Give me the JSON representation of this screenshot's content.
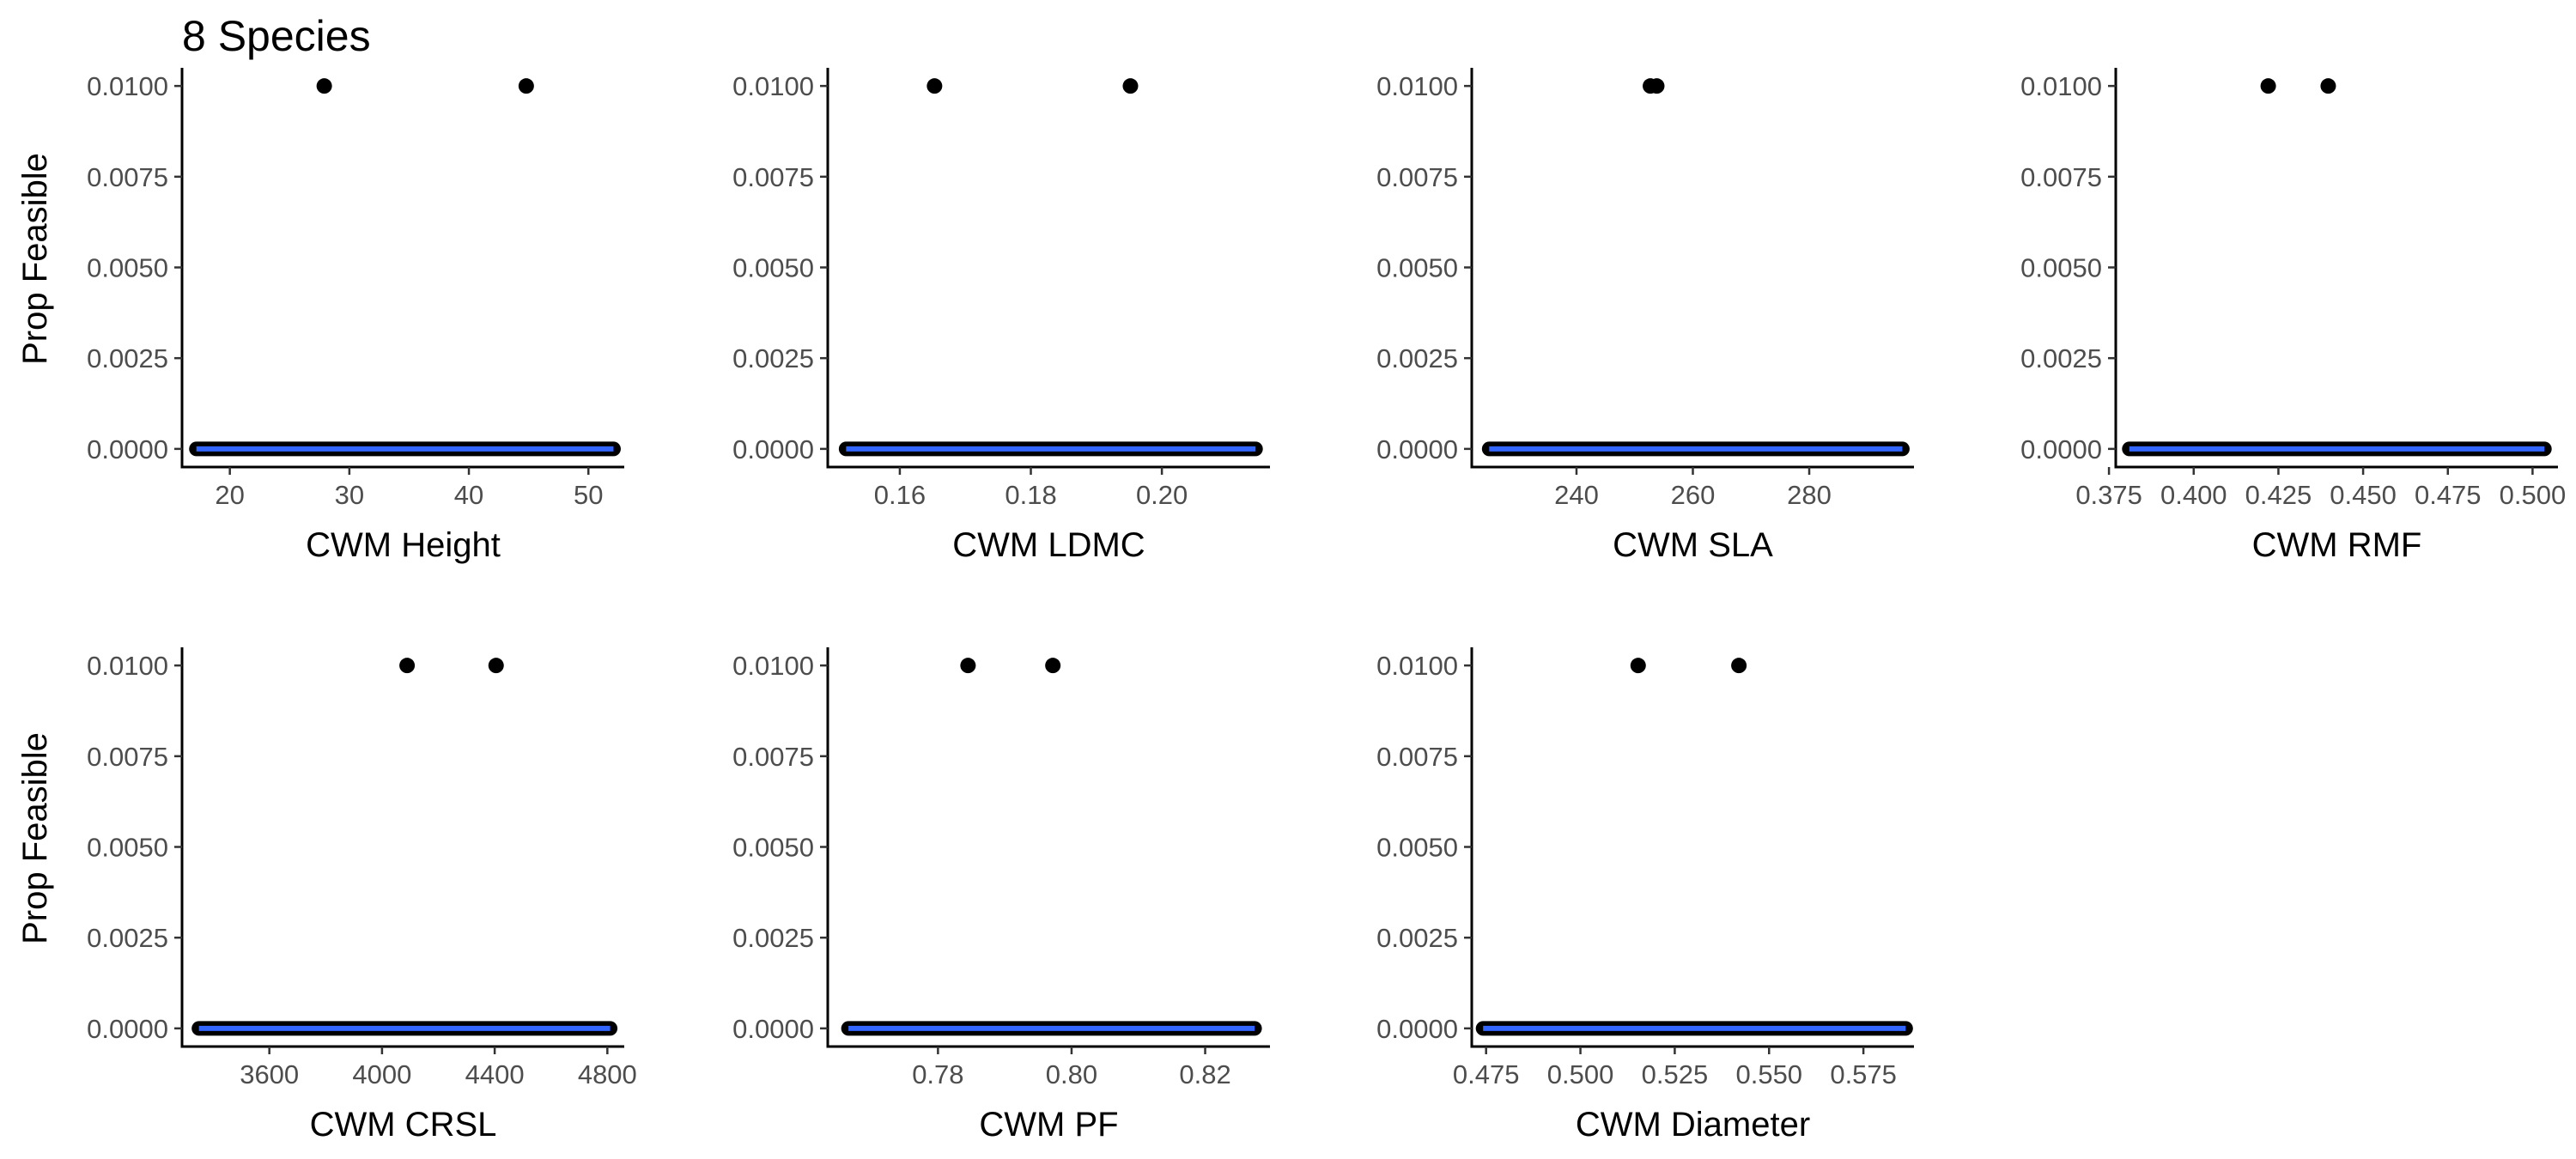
{
  "figure": {
    "title": "8 Species"
  },
  "chart_data": [
    {
      "type": "scatter",
      "xlabel": "CWM Height",
      "ylabel": "Prop Feasible",
      "xlim": [
        16,
        53
      ],
      "xticks": [
        20,
        30,
        40,
        50
      ],
      "ylim": [
        -0.0005,
        0.0105
      ],
      "yticks": [
        0,
        0.0025,
        0.005,
        0.0075,
        0.01
      ],
      "points": [
        {
          "x": 27.9,
          "y": 0.01
        },
        {
          "x": 44.8,
          "y": 0.01
        }
      ],
      "zero_band": [
        17.2,
        52.1
      ],
      "trend_line": {
        "color": "#3366FF",
        "y": 0
      },
      "point_color": "#000000"
    },
    {
      "type": "scatter",
      "xlabel": "CWM LDMC",
      "ylabel": "Prop Feasible",
      "xlim": [
        0.149,
        0.2165
      ],
      "xticks": [
        0.16,
        0.18,
        0.2
      ],
      "ylim": [
        -0.0005,
        0.0105
      ],
      "yticks": [
        0,
        0.0025,
        0.005,
        0.0075,
        0.01
      ],
      "points": [
        {
          "x": 0.1653,
          "y": 0.01
        },
        {
          "x": 0.1952,
          "y": 0.01
        }
      ],
      "zero_band": [
        0.1518,
        0.2143
      ],
      "trend_line": {
        "color": "#3366FF",
        "y": 0
      },
      "point_color": "#000000"
    },
    {
      "type": "scatter",
      "xlabel": "CWM SLA",
      "ylabel": "Prop Feasible",
      "xlim": [
        222,
        298
      ],
      "xticks": [
        240,
        260,
        280
      ],
      "ylim": [
        -0.0005,
        0.0105
      ],
      "yticks": [
        0,
        0.0025,
        0.005,
        0.0075,
        0.01
      ],
      "points": [
        {
          "x": 252.7,
          "y": 0.01
        },
        {
          "x": 253.8,
          "y": 0.01
        }
      ],
      "zero_band": [
        225,
        296
      ],
      "trend_line": {
        "color": "#3366FF",
        "y": 0
      },
      "point_color": "#000000"
    },
    {
      "type": "scatter",
      "xlabel": "CWM RMF",
      "ylabel": "Prop Feasible",
      "xlim": [
        0.377,
        0.5075
      ],
      "xticks": [
        0.375,
        0.4,
        0.425,
        0.45,
        0.475,
        0.5
      ],
      "ylim": [
        -0.0005,
        0.0105
      ],
      "yticks": [
        0,
        0.0025,
        0.005,
        0.0075,
        0.01
      ],
      "points": [
        {
          "x": 0.422,
          "y": 0.01
        },
        {
          "x": 0.4397,
          "y": 0.01
        }
      ],
      "zero_band": [
        0.381,
        0.5035
      ],
      "trend_line": {
        "color": "#3366FF",
        "y": 0
      },
      "point_color": "#000000"
    },
    {
      "type": "scatter",
      "xlabel": "CWM CRSL",
      "ylabel": "Prop Feasible",
      "xlim": [
        3290,
        4860
      ],
      "xticks": [
        3600,
        4000,
        4400,
        4800
      ],
      "ylim": [
        -0.0005,
        0.0105
      ],
      "yticks": [
        0,
        0.0025,
        0.005,
        0.0075,
        0.01
      ],
      "points": [
        {
          "x": 4089,
          "y": 0.01
        },
        {
          "x": 4405,
          "y": 0.01
        }
      ],
      "zero_band": [
        3350,
        4810
      ],
      "trend_line": {
        "color": "#3366FF",
        "y": 0
      },
      "point_color": "#000000"
    },
    {
      "type": "scatter",
      "xlabel": "CWM PF",
      "ylabel": "Prop Feasible",
      "xlim": [
        0.7635,
        0.8297
      ],
      "xticks": [
        0.78,
        0.8,
        0.82
      ],
      "ylim": [
        -0.0005,
        0.0105
      ],
      "yticks": [
        0,
        0.0025,
        0.005,
        0.0075,
        0.01
      ],
      "points": [
        {
          "x": 0.7845,
          "y": 0.01
        },
        {
          "x": 0.7972,
          "y": 0.01
        }
      ],
      "zero_band": [
        0.7666,
        0.8274
      ],
      "trend_line": {
        "color": "#3366FF",
        "y": 0
      },
      "point_color": "#000000"
    },
    {
      "type": "scatter",
      "xlabel": "CWM Diameter",
      "ylabel": "Prop Feasible",
      "xlim": [
        0.4712,
        0.5884
      ],
      "xticks": [
        0.475,
        0.5,
        0.525,
        0.55,
        0.575
      ],
      "ylim": [
        -0.0005,
        0.0105
      ],
      "yticks": [
        0,
        0.0025,
        0.005,
        0.0075,
        0.01
      ],
      "points": [
        {
          "x": 0.5153,
          "y": 0.01
        },
        {
          "x": 0.542,
          "y": 0.01
        }
      ],
      "zero_band": [
        0.4742,
        0.5862
      ],
      "trend_line": {
        "color": "#3366FF",
        "y": 0
      },
      "point_color": "#000000"
    }
  ]
}
